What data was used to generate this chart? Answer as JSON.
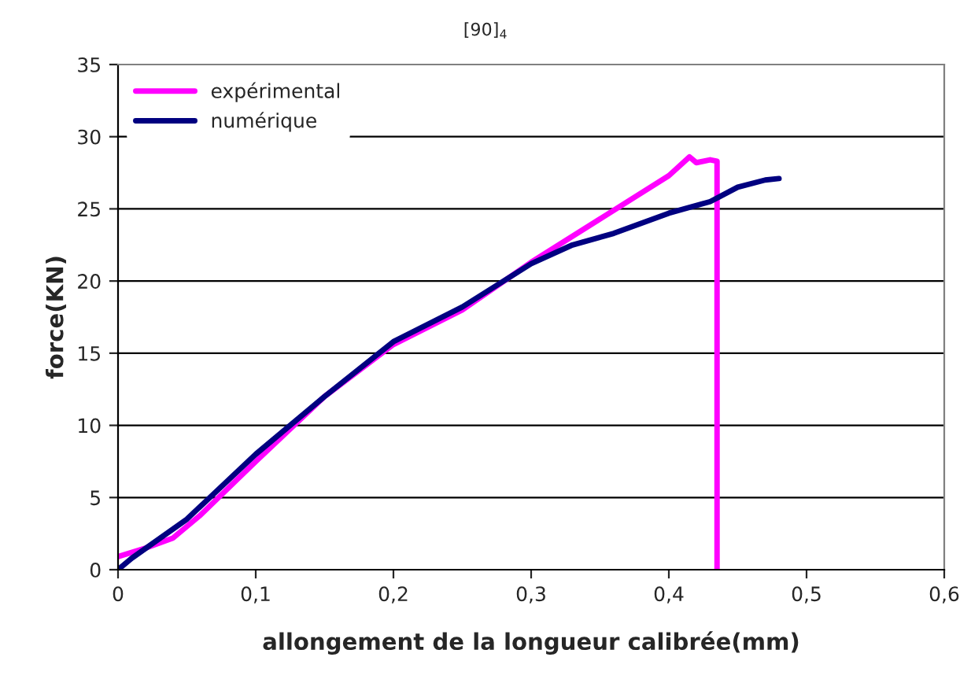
{
  "chart_data": {
    "type": "line",
    "title": "[90]$_{4}$",
    "xlabel": "allongement de la longueur calibrée(mm)",
    "ylabel": "force(KN)",
    "xlim": [
      0,
      0.6
    ],
    "xticks": [
      {
        "value": 0,
        "label": "0"
      },
      {
        "value": 0.1,
        "label": "0,1"
      },
      {
        "value": 0.2,
        "label": "0,2"
      },
      {
        "value": 0.3,
        "label": "0,3"
      },
      {
        "value": 0.4,
        "label": "0,4"
      },
      {
        "value": 0.5,
        "label": "0,5"
      },
      {
        "value": 0.6,
        "label": "0,6"
      }
    ],
    "ylim": [
      0,
      35
    ],
    "yticks": [
      0,
      5,
      10,
      15,
      20,
      25,
      30,
      35
    ],
    "grid": "y",
    "legend": "top left",
    "marker": "none",
    "line_style": "solid",
    "series": [
      {
        "name": "expérimental",
        "color": "#ff00ff",
        "x": [
          0,
          0.02,
          0.04,
          0.06,
          0.1,
          0.15,
          0.2,
          0.25,
          0.3,
          0.35,
          0.4,
          0.415,
          0.42,
          0.43,
          0.435,
          0.435
        ],
        "values": [
          0.9,
          1.5,
          2.2,
          3.8,
          7.5,
          12.0,
          15.6,
          18.0,
          21.3,
          24.3,
          27.3,
          28.6,
          28.2,
          28.4,
          28.3,
          0
        ]
      },
      {
        "name": "numérique",
        "color": "#000080",
        "x": [
          0,
          0.01,
          0.05,
          0.1,
          0.15,
          0.2,
          0.25,
          0.3,
          0.33,
          0.36,
          0.4,
          0.43,
          0.45,
          0.47,
          0.48
        ],
        "values": [
          0,
          0.8,
          3.5,
          8.0,
          12.0,
          15.8,
          18.2,
          21.2,
          22.5,
          23.3,
          24.7,
          25.5,
          26.5,
          27.0,
          27.1
        ]
      }
    ]
  }
}
